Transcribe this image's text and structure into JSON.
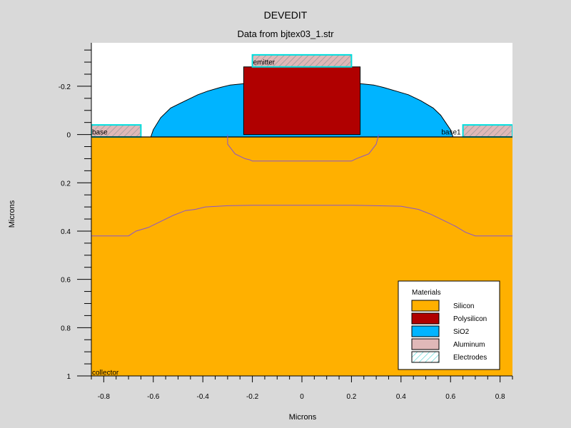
{
  "chart_data": {
    "type": "cross-section",
    "title": "DEVEDIT",
    "subtitle": "Data from bjtex03_1.str",
    "xlabel": "Microns",
    "ylabel": "Microns",
    "xlim": [
      -0.85,
      0.85
    ],
    "ylim": [
      -0.38,
      1.0
    ],
    "x_ticks": [
      {
        "value": -0.8,
        "label": "-0.8"
      },
      {
        "value": -0.6,
        "label": "-0.6"
      },
      {
        "value": -0.4,
        "label": "-0.4"
      },
      {
        "value": -0.2,
        "label": "-0.2"
      },
      {
        "value": 0,
        "label": "0"
      },
      {
        "value": 0.2,
        "label": "0.2"
      },
      {
        "value": 0.4,
        "label": "0.4"
      },
      {
        "value": 0.6,
        "label": "0.6"
      },
      {
        "value": 0.8,
        "label": "0.8"
      }
    ],
    "y_ticks": [
      {
        "value": -0.2,
        "label": "-0.2"
      },
      {
        "value": 0,
        "label": "0"
      },
      {
        "value": 0.2,
        "label": "0.2"
      },
      {
        "value": 0.4,
        "label": "0.4"
      },
      {
        "value": 0.6,
        "label": "0.6"
      },
      {
        "value": 0.8,
        "label": "0.8"
      },
      {
        "value": 1,
        "label": "1"
      }
    ],
    "regions": [
      {
        "name": "silicon",
        "material": "Silicon",
        "color": "#ffb000",
        "points": [
          [
            -0.85,
            0.01
          ],
          [
            0.85,
            0.01
          ],
          [
            0.85,
            1.0
          ],
          [
            -0.85,
            1.0
          ]
        ]
      },
      {
        "name": "sio2",
        "material": "SiO2",
        "color": "#00b4ff",
        "points": [
          [
            -0.61,
            0.01
          ],
          [
            -0.6,
            -0.02
          ],
          [
            -0.57,
            -0.07
          ],
          [
            -0.53,
            -0.11
          ],
          [
            -0.47,
            -0.14
          ],
          [
            -0.42,
            -0.165
          ],
          [
            -0.38,
            -0.18
          ],
          [
            -0.33,
            -0.195
          ],
          [
            -0.29,
            -0.205
          ],
          [
            -0.24,
            -0.21
          ],
          [
            0.24,
            -0.21
          ],
          [
            0.29,
            -0.205
          ],
          [
            0.33,
            -0.195
          ],
          [
            0.38,
            -0.18
          ],
          [
            0.43,
            -0.165
          ],
          [
            0.48,
            -0.14
          ],
          [
            0.53,
            -0.11
          ],
          [
            0.56,
            -0.08
          ],
          [
            0.58,
            -0.05
          ],
          [
            0.6,
            -0.02
          ],
          [
            0.61,
            0.01
          ]
        ]
      },
      {
        "name": "polysilicon",
        "material": "Polysilicon",
        "color": "#b00000",
        "points": [
          [
            -0.235,
            -0.28
          ],
          [
            0.235,
            -0.28
          ],
          [
            0.235,
            0.0
          ],
          [
            -0.235,
            0.0
          ]
        ]
      },
      {
        "name": "aluminum-emitter",
        "material": "Aluminum",
        "color": "#e0b8b8",
        "points": [
          [
            -0.2,
            -0.33
          ],
          [
            0.2,
            -0.33
          ],
          [
            0.2,
            -0.28
          ],
          [
            -0.2,
            -0.28
          ]
        ]
      },
      {
        "name": "aluminum-base",
        "material": "Aluminum",
        "color": "#e0b8b8",
        "points": [
          [
            -0.85,
            -0.04
          ],
          [
            -0.65,
            -0.04
          ],
          [
            -0.65,
            0.01
          ],
          [
            -0.85,
            0.01
          ]
        ]
      },
      {
        "name": "aluminum-base1",
        "material": "Aluminum",
        "color": "#e0b8b8",
        "points": [
          [
            0.65,
            -0.04
          ],
          [
            0.85,
            -0.04
          ],
          [
            0.85,
            0.01
          ],
          [
            0.65,
            0.01
          ]
        ]
      }
    ],
    "electrodes": [
      {
        "name": "emitter",
        "label": "emitter",
        "points": [
          [
            -0.2,
            -0.33
          ],
          [
            0.2,
            -0.33
          ],
          [
            0.2,
            -0.28
          ],
          [
            -0.2,
            -0.28
          ]
        ],
        "label_at": [
          -0.2,
          -0.29
        ]
      },
      {
        "name": "base",
        "label": "base",
        "points": [
          [
            -0.85,
            -0.04
          ],
          [
            -0.65,
            -0.04
          ],
          [
            -0.65,
            0.01
          ],
          [
            -0.85,
            0.01
          ]
        ],
        "label_at": [
          -0.85,
          0.0
        ]
      },
      {
        "name": "base1",
        "label": "base1",
        "points": [
          [
            0.65,
            -0.04
          ],
          [
            0.85,
            -0.04
          ],
          [
            0.85,
            0.01
          ],
          [
            0.65,
            0.01
          ]
        ],
        "label_at": [
          0.56,
          0.0
        ]
      },
      {
        "name": "collector",
        "label": "collector",
        "label_at": [
          -0.85,
          0.995
        ]
      }
    ],
    "junctions": [
      {
        "name": "emitter-junction",
        "points": [
          [
            -0.3,
            0.0
          ],
          [
            -0.3,
            0.04
          ],
          [
            -0.27,
            0.08
          ],
          [
            -0.23,
            0.1
          ],
          [
            -0.21,
            0.105
          ],
          [
            -0.2,
            0.11
          ],
          [
            0.2,
            0.11
          ],
          [
            0.22,
            0.1
          ],
          [
            0.27,
            0.08
          ],
          [
            0.3,
            0.04
          ],
          [
            0.31,
            0.0
          ]
        ]
      },
      {
        "name": "base-junction",
        "points": [
          [
            -0.85,
            0.42
          ],
          [
            -0.7,
            0.42
          ],
          [
            -0.67,
            0.4
          ],
          [
            -0.62,
            0.385
          ],
          [
            -0.57,
            0.36
          ],
          [
            -0.52,
            0.335
          ],
          [
            -0.47,
            0.315
          ],
          [
            -0.43,
            0.31
          ],
          [
            -0.39,
            0.3
          ],
          [
            -0.3,
            0.295
          ],
          [
            -0.2,
            0.293
          ],
          [
            0.2,
            0.293
          ],
          [
            0.3,
            0.295
          ],
          [
            0.4,
            0.297
          ],
          [
            0.47,
            0.31
          ],
          [
            0.52,
            0.33
          ],
          [
            0.57,
            0.355
          ],
          [
            0.62,
            0.38
          ],
          [
            0.66,
            0.405
          ],
          [
            0.7,
            0.42
          ],
          [
            0.85,
            0.42
          ]
        ]
      }
    ],
    "legend": {
      "title": "Materials",
      "position": "bottom-right",
      "entries": [
        {
          "label": "Silicon",
          "color": "#ffb000",
          "pattern": "solid"
        },
        {
          "label": "Polysilicon",
          "color": "#b00000",
          "pattern": "solid"
        },
        {
          "label": "SiO2",
          "color": "#00b4ff",
          "pattern": "solid"
        },
        {
          "label": "Aluminum",
          "color": "#e0b8b8",
          "pattern": "solid"
        },
        {
          "label": "Electrodes",
          "color": "#ffffff",
          "pattern": "hatch"
        }
      ]
    },
    "colors": {
      "background": "#d9d9d9",
      "plot_background": "#ffffff",
      "junction": "#8855cc",
      "electrode_outline": "#00dede",
      "electrode_hatch": "#999999",
      "outline": "#000000"
    }
  }
}
